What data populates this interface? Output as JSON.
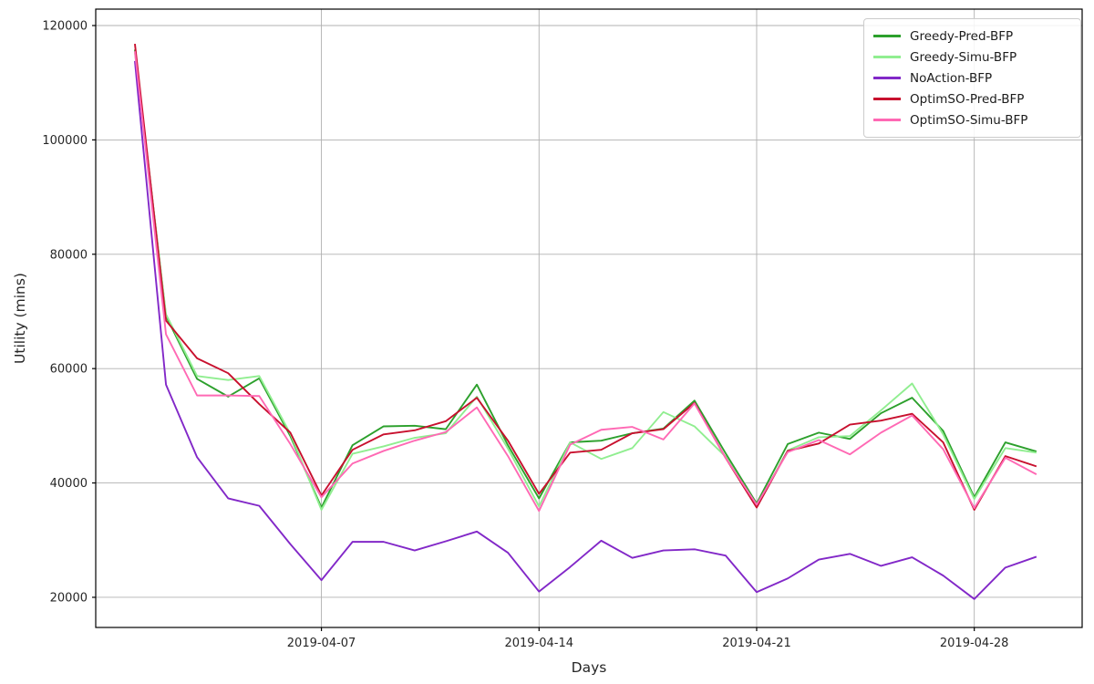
{
  "chart_data": {
    "type": "line",
    "title": "",
    "xlabel": "Days",
    "ylabel": "Utility (mins)",
    "grid": true,
    "legend_position": "upper right",
    "background_color": "#ffffff",
    "grid_color": "#b0b0b0",
    "spine_color": "#000000",
    "line_width": 1.9,
    "ylim": [
      14727,
      122871
    ],
    "yticks": [
      20000,
      40000,
      60000,
      80000,
      100000,
      120000
    ],
    "x_dates": [
      "2019-04-01",
      "2019-04-02",
      "2019-04-03",
      "2019-04-04",
      "2019-04-05",
      "2019-04-06",
      "2019-04-07",
      "2019-04-08",
      "2019-04-09",
      "2019-04-10",
      "2019-04-11",
      "2019-04-12",
      "2019-04-13",
      "2019-04-14",
      "2019-04-15",
      "2019-04-16",
      "2019-04-17",
      "2019-04-18",
      "2019-04-19",
      "2019-04-20",
      "2019-04-21",
      "2019-04-22",
      "2019-04-23",
      "2019-04-24",
      "2019-04-25",
      "2019-04-26",
      "2019-04-27",
      "2019-04-28",
      "2019-04-29",
      "2019-04-30"
    ],
    "xticks": [
      {
        "index": 6,
        "label": "2019-04-07"
      },
      {
        "index": 13,
        "label": "2019-04-14"
      },
      {
        "index": 20,
        "label": "2019-04-21"
      },
      {
        "index": 27,
        "label": "2019-04-28"
      }
    ],
    "x_pad_left_days": 1.26,
    "x_pad_right_days": 1.47,
    "series": [
      {
        "name": "Greedy-Pred-BFP",
        "color": "#2ca02c",
        "values": [
          115800,
          69200,
          58200,
          55100,
          58300,
          48200,
          35700,
          46600,
          49900,
          50000,
          49400,
          57200,
          46600,
          37300,
          47100,
          47400,
          48700,
          49500,
          54400,
          45200,
          36400,
          46800,
          48800,
          47700,
          52200,
          54900,
          49100,
          37500,
          47100,
          45500
        ]
      },
      {
        "name": "Greedy-Simu-BFP",
        "color": "#90ee90",
        "values": [
          115300,
          69500,
          58700,
          58000,
          58700,
          48600,
          35300,
          45100,
          46400,
          47900,
          48700,
          55100,
          46000,
          35900,
          47100,
          44200,
          46100,
          52400,
          49900,
          44600,
          35900,
          45700,
          48000,
          48200,
          52700,
          57400,
          48500,
          37200,
          46100,
          45300
        ]
      },
      {
        "name": "NoAction-BFP",
        "color": "#8228c8",
        "values": [
          113800,
          57200,
          44500,
          37300,
          36000,
          29300,
          23000,
          29700,
          29700,
          28200,
          29800,
          31500,
          27800,
          21000,
          25300,
          29900,
          26900,
          28200,
          28400,
          27300,
          20900,
          23300,
          26600,
          27600,
          25500,
          27000,
          23800,
          19700,
          25200,
          27100
        ]
      },
      {
        "name": "OptimSO-Pred-BFP",
        "color": "#c8102e",
        "values": [
          116800,
          68400,
          61800,
          59200,
          53800,
          48800,
          37800,
          45800,
          48500,
          49200,
          50800,
          54900,
          47400,
          38100,
          45300,
          45800,
          48700,
          49400,
          54000,
          44400,
          35700,
          45600,
          46900,
          50200,
          50900,
          52100,
          47100,
          35300,
          44700,
          42900
        ]
      },
      {
        "name": "OptimSO-Simu-BFP",
        "color": "#ff69b4",
        "values": [
          115500,
          66000,
          55300,
          55300,
          55200,
          46800,
          37500,
          43400,
          45600,
          47400,
          48900,
          53200,
          44700,
          35100,
          46700,
          49300,
          49800,
          47600,
          53900,
          44400,
          36200,
          45400,
          47500,
          45000,
          48800,
          51800,
          45900,
          35600,
          44400,
          41500
        ]
      }
    ]
  }
}
